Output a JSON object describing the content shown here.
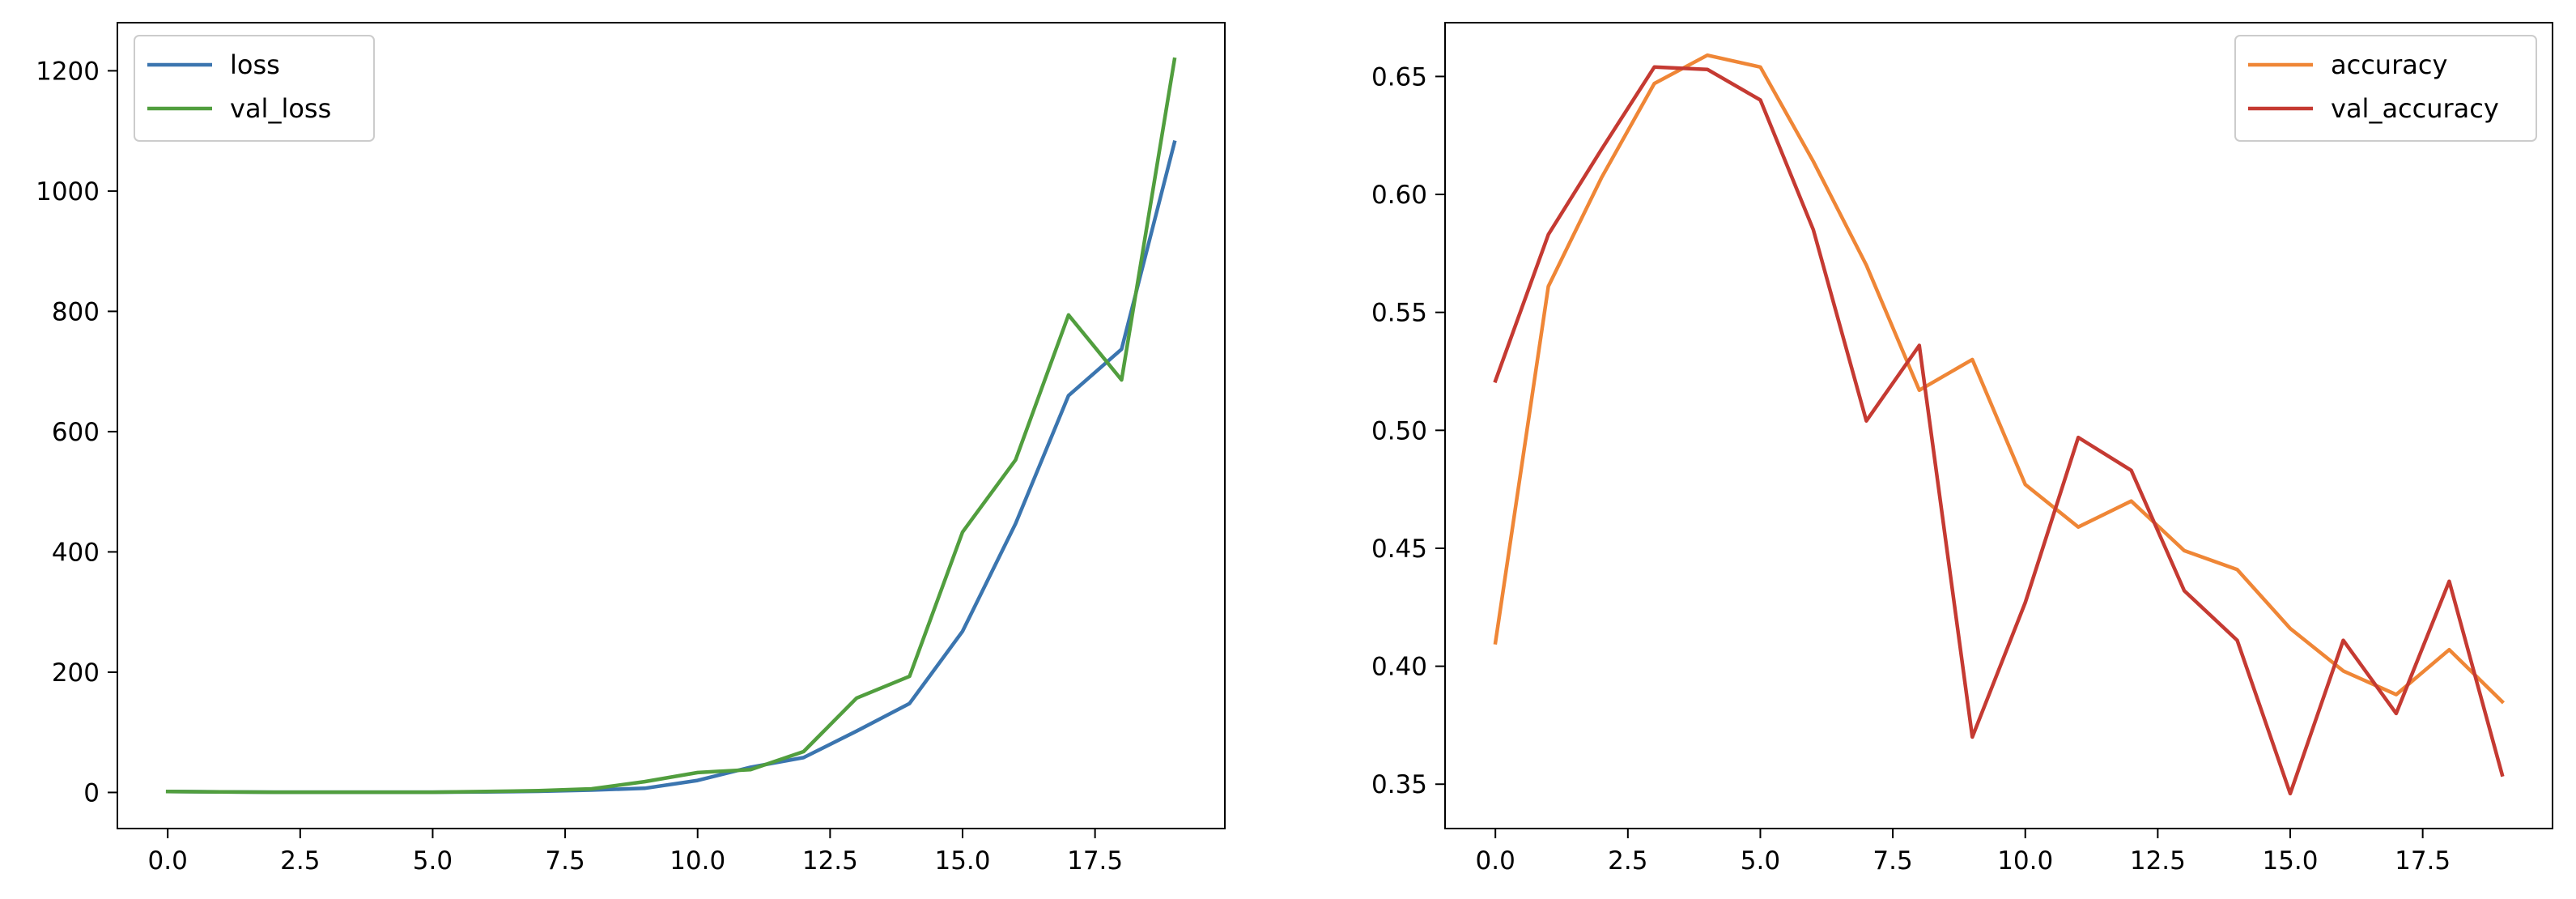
{
  "chart_data": [
    {
      "type": "line",
      "title": "",
      "xlabel": "",
      "ylabel": "",
      "xlim": [
        -0.95,
        19.95
      ],
      "ylim": [
        -60,
        1280
      ],
      "xticks": [
        0.0,
        2.5,
        5.0,
        7.5,
        10.0,
        12.5,
        15.0,
        17.5
      ],
      "xtick_labels": [
        "0.0",
        "2.5",
        "5.0",
        "7.5",
        "10.0",
        "12.5",
        "15.0",
        "17.5"
      ],
      "yticks": [
        0,
        200,
        400,
        600,
        800,
        1000,
        1200
      ],
      "ytick_labels": [
        "0",
        "200",
        "400",
        "600",
        "800",
        "1000",
        "1200"
      ],
      "grid": false,
      "legend_position": "upper-left",
      "x": [
        0,
        1,
        2,
        3,
        4,
        5,
        6,
        7,
        8,
        9,
        10,
        11,
        12,
        13,
        14,
        15,
        16,
        17,
        18,
        19
      ],
      "series": [
        {
          "name": "loss",
          "color": "#3b75af",
          "values": [
            1.5,
            1.0,
            0.5,
            0.5,
            0.5,
            0.5,
            1.0,
            2.0,
            4.0,
            7.0,
            20.0,
            42.0,
            58.0,
            102.0,
            148.0,
            268.0,
            447.0,
            660.0,
            737.0,
            1081.0
          ]
        },
        {
          "name": "val_loss",
          "color": "#519e3e",
          "values": [
            1.5,
            1.0,
            0.5,
            0.5,
            0.5,
            0.5,
            1.5,
            3.0,
            6.0,
            18.0,
            33.0,
            38.0,
            68.0,
            157.0,
            193.0,
            433.0,
            553.0,
            794.0,
            686.0,
            1219.0
          ]
        }
      ]
    },
    {
      "type": "line",
      "title": "",
      "xlabel": "",
      "ylabel": "",
      "xlim": [
        -0.95,
        19.95
      ],
      "ylim": [
        0.3312,
        0.6728
      ],
      "xticks": [
        0.0,
        2.5,
        5.0,
        7.5,
        10.0,
        12.5,
        15.0,
        17.5
      ],
      "xtick_labels": [
        "0.0",
        "2.5",
        "5.0",
        "7.5",
        "10.0",
        "12.5",
        "15.0",
        "17.5"
      ],
      "yticks": [
        0.35,
        0.4,
        0.45,
        0.5,
        0.55,
        0.6,
        0.65
      ],
      "ytick_labels": [
        "0.35",
        "0.40",
        "0.45",
        "0.50",
        "0.55",
        "0.60",
        "0.65"
      ],
      "grid": false,
      "legend_position": "upper-right",
      "x": [
        0,
        1,
        2,
        3,
        4,
        5,
        6,
        7,
        8,
        9,
        10,
        11,
        12,
        13,
        14,
        15,
        16,
        17,
        18,
        19
      ],
      "series": [
        {
          "name": "accuracy",
          "color": "#ef8636",
          "values": [
            0.41,
            0.561,
            0.607,
            0.647,
            0.659,
            0.654,
            0.614,
            0.57,
            0.517,
            0.53,
            0.477,
            0.459,
            0.47,
            0.449,
            0.441,
            0.416,
            0.398,
            0.388,
            0.407,
            0.385
          ]
        },
        {
          "name": "val_accuracy",
          "color": "#c53a32",
          "values": [
            0.521,
            0.583,
            0.619,
            0.654,
            0.653,
            0.64,
            0.585,
            0.504,
            0.536,
            0.37,
            0.427,
            0.497,
            0.483,
            0.432,
            0.411,
            0.346,
            0.411,
            0.38,
            0.436,
            0.354
          ]
        }
      ]
    }
  ]
}
